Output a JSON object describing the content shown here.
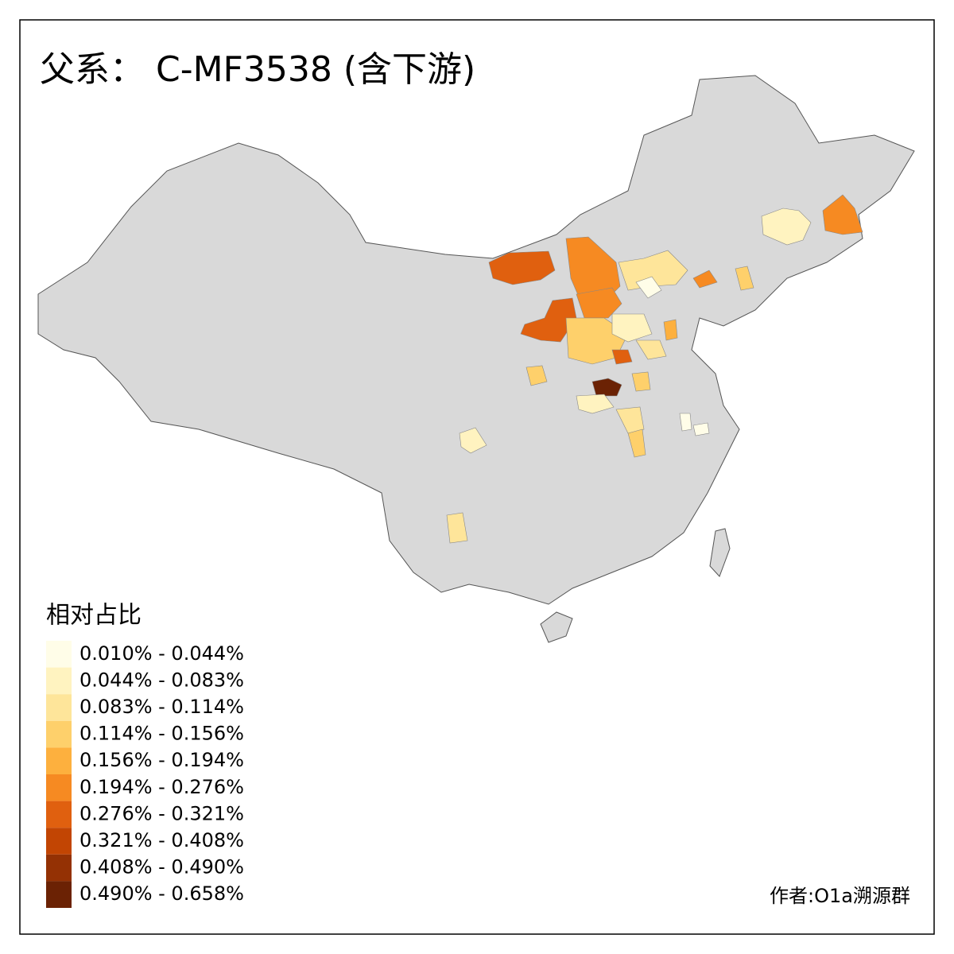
{
  "title": "父系： C-MF3538 (含下游)",
  "legend": {
    "title": "相对占比",
    "items": [
      {
        "label": "0.010% - 0.044%",
        "color": "#fffde8"
      },
      {
        "label": "0.044% - 0.083%",
        "color": "#fff3c0"
      },
      {
        "label": "0.083% - 0.114%",
        "color": "#fee59a"
      },
      {
        "label": "0.114% - 0.156%",
        "color": "#fed06b"
      },
      {
        "label": "0.156% - 0.194%",
        "color": "#fdb03e"
      },
      {
        "label": "0.194% - 0.276%",
        "color": "#f68a22"
      },
      {
        "label": "0.276% - 0.321%",
        "color": "#e0600f"
      },
      {
        "label": "0.321% - 0.408%",
        "color": "#c24503"
      },
      {
        "label": "0.408% - 0.490%",
        "color": "#943104"
      },
      {
        "label": "0.490% - 0.658%",
        "color": "#6b2204"
      }
    ]
  },
  "author": "作者:O1a溯源群"
}
